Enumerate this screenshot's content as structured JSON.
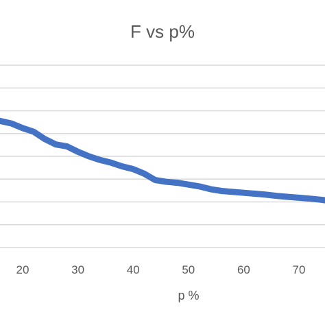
{
  "chart_data": {
    "type": "line",
    "title": "F vs p%",
    "xlabel": "p %",
    "ylabel": "",
    "xlim": [
      15,
      75
    ],
    "x_ticks": [
      20,
      30,
      40,
      50,
      60,
      70
    ],
    "grid": true,
    "legend": "none",
    "series": [
      {
        "color": "#4472c4",
        "x": [
          15,
          18,
          20,
          22,
          24,
          26,
          28,
          30,
          32,
          34,
          36,
          38,
          40,
          42,
          44,
          46,
          48,
          50,
          52,
          54,
          56,
          58,
          60,
          62,
          64,
          66,
          68,
          70,
          72,
          74,
          75
        ],
        "y": [
          0.7,
          0.68,
          0.655,
          0.635,
          0.595,
          0.565,
          0.555,
          0.525,
          0.5,
          0.48,
          0.465,
          0.445,
          0.43,
          0.405,
          0.37,
          0.36,
          0.355,
          0.345,
          0.335,
          0.32,
          0.31,
          0.305,
          0.3,
          0.295,
          0.29,
          0.283,
          0.278,
          0.273,
          0.268,
          0.262,
          0.258
        ]
      }
    ]
  }
}
